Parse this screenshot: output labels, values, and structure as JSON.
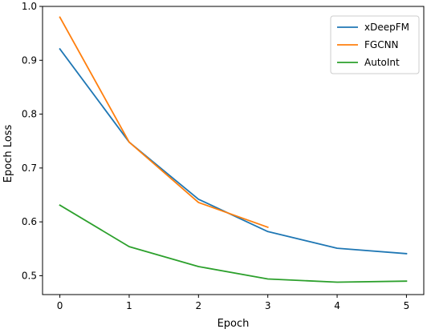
{
  "chart_data": {
    "type": "line",
    "title": "",
    "xlabel": "Epoch",
    "ylabel": "Epoch Loss",
    "xlim": [
      -0.25,
      5.25
    ],
    "ylim": [
      0.465,
      1.0
    ],
    "xticks": [
      0,
      1,
      2,
      3,
      4,
      5
    ],
    "yticks": [
      0.5,
      0.6,
      0.7,
      0.8,
      0.9,
      1.0
    ],
    "xtick_labels": [
      "0",
      "1",
      "2",
      "3",
      "4",
      "5"
    ],
    "ytick_labels": [
      "0.5",
      "0.6",
      "0.7",
      "0.8",
      "0.9",
      "1.0"
    ],
    "grid": false,
    "legend_position": "top-right",
    "series": [
      {
        "name": "xDeepFM",
        "color": "#1f77b4",
        "x": [
          0,
          1,
          2,
          3,
          4,
          5
        ],
        "values": [
          0.921,
          0.748,
          0.642,
          0.582,
          0.551,
          0.541
        ]
      },
      {
        "name": "FGCNN",
        "color": "#ff7f0e",
        "x": [
          0,
          1,
          2,
          3
        ],
        "values": [
          0.98,
          0.748,
          0.636,
          0.59
        ]
      },
      {
        "name": "AutoInt",
        "color": "#2ca02c",
        "x": [
          0,
          1,
          2,
          3,
          4,
          5
        ],
        "values": [
          0.631,
          0.554,
          0.517,
          0.494,
          0.488,
          0.49
        ]
      }
    ]
  }
}
